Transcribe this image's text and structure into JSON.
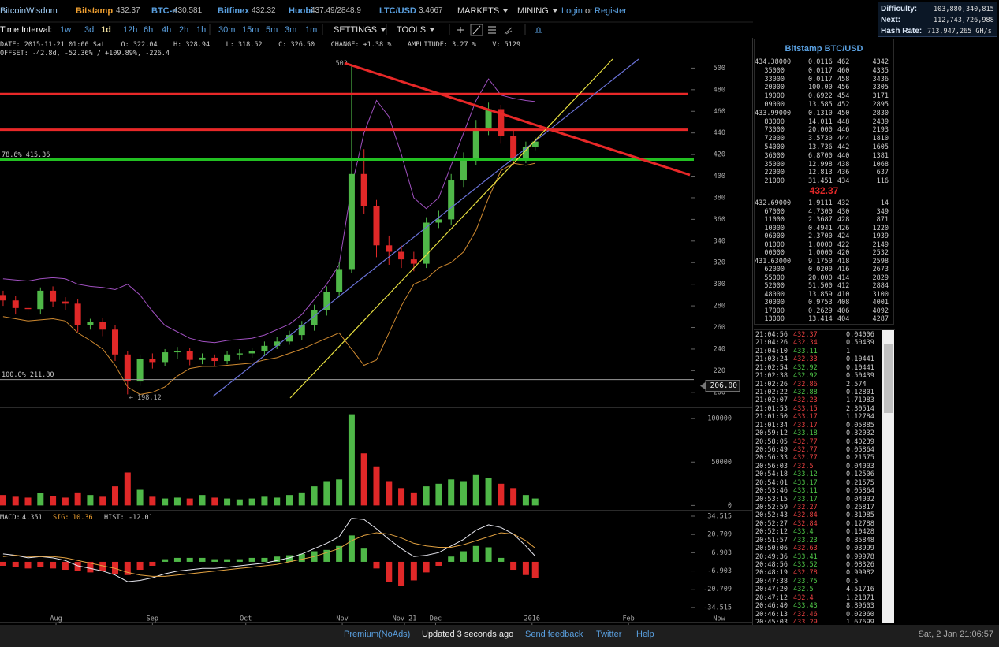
{
  "nav": {
    "brand": "BitcoinWisdom",
    "tickers": [
      {
        "name": "Bitstamp",
        "price": "432.37"
      },
      {
        "name": "BTC-e",
        "price": "430.581"
      },
      {
        "name": "Bitfinex",
        "price": "432.32"
      },
      {
        "name": "Huobi",
        "price": "437.49/2848.9"
      },
      {
        "name": "LTC/USD",
        "price": "3.4667"
      }
    ],
    "menus": [
      "MARKETS",
      "MINING"
    ],
    "login": "Login",
    "or": "or",
    "register": "Register"
  },
  "network": [
    {
      "label": "Difficulty:",
      "value": "103,880,340,815"
    },
    {
      "label": "Next:",
      "value": "112,743,726,988"
    },
    {
      "label": "Hash Rate:",
      "value": "713,947,265 GH/s"
    }
  ],
  "toolbar": {
    "label": "Time Interval:",
    "intervals": [
      "1w",
      "3d",
      "1d",
      "12h",
      "6h",
      "4h",
      "2h",
      "1h",
      "30m",
      "15m",
      "5m",
      "3m",
      "1m"
    ],
    "active": 2,
    "settings": "SETTINGS",
    "tools": "TOOLS"
  },
  "info": {
    "line1": "DATE: 2015-11-21 01:00 Sat    O: 322.04    H: 328.94    L: 318.52    C: 326.50    CHANGE: +1.38 %    AMPLITUDE: 3.27 %    V: 5129",
    "line2": "OFFSET: -42.8d, -52.36% / +109.89%, -226.4"
  },
  "price_chart": {
    "xlim": [
      "2015-07-14",
      "2016-02-22"
    ],
    "ylim": [
      186,
      528
    ],
    "yticks": [
      200,
      220,
      240,
      260,
      280,
      300,
      320,
      340,
      360,
      380,
      400,
      420,
      440,
      460,
      480,
      500
    ],
    "xticks": [
      {
        "value": "2015-08-01",
        "label": "Aug"
      },
      {
        "value": "2015-09-01",
        "label": "Sep"
      },
      {
        "value": "2015-10-01",
        "label": "Oct"
      },
      {
        "value": "2015-11-01",
        "label": "Nov"
      },
      {
        "value": "2015-11-21",
        "label": "Nov 21"
      },
      {
        "value": "2015-12-01",
        "label": "Dec"
      },
      {
        "value": "2016-01-01",
        "label": "2016"
      },
      {
        "value": "2016-02-01",
        "label": "Feb"
      }
    ],
    "now_label": "Now",
    "dates": [
      "2015-07-15",
      "2015-07-19",
      "2015-07-23",
      "2015-07-27",
      "2015-07-31",
      "2015-08-04",
      "2015-08-08",
      "2015-08-12",
      "2015-08-16",
      "2015-08-20",
      "2015-08-24",
      "2015-08-28",
      "2015-09-01",
      "2015-09-05",
      "2015-09-09",
      "2015-09-13",
      "2015-09-17",
      "2015-09-21",
      "2015-09-25",
      "2015-09-29",
      "2015-10-03",
      "2015-10-07",
      "2015-10-11",
      "2015-10-15",
      "2015-10-19",
      "2015-10-23",
      "2015-10-27",
      "2015-10-31",
      "2015-11-04",
      "2015-11-08",
      "2015-11-12",
      "2015-11-16",
      "2015-11-20",
      "2015-11-24",
      "2015-11-28",
      "2015-12-02",
      "2015-12-06",
      "2015-12-10",
      "2015-12-14",
      "2015-12-18",
      "2015-12-22",
      "2015-12-26",
      "2015-12-30",
      "2016-01-02"
    ],
    "open": [
      290,
      285,
      278,
      277,
      294,
      284,
      282,
      262,
      265,
      258,
      235,
      210,
      231,
      228,
      237,
      238,
      230,
      232,
      229,
      235,
      236,
      238,
      243,
      247,
      253,
      262,
      276,
      293,
      314,
      402,
      372,
      336,
      330,
      323,
      319,
      357,
      360,
      396,
      415,
      444,
      462,
      437,
      416,
      427
    ],
    "high": [
      294,
      289,
      282,
      297,
      298,
      288,
      286,
      268,
      269,
      262,
      238,
      235,
      236,
      240,
      242,
      241,
      236,
      235,
      238,
      240,
      241,
      247,
      251,
      257,
      266,
      281,
      298,
      320,
      502,
      425,
      378,
      345,
      336,
      330,
      362,
      368,
      402,
      422,
      452,
      468,
      466,
      442,
      432,
      436
    ],
    "low": [
      280,
      272,
      270,
      272,
      279,
      276,
      256,
      258,
      252,
      229,
      198.12,
      206,
      222,
      224,
      231,
      225,
      226,
      224,
      226,
      230,
      232,
      234,
      240,
      244,
      248,
      257,
      271,
      288,
      310,
      365,
      325,
      318,
      315,
      312,
      315,
      352,
      355,
      390,
      410,
      438,
      430,
      410,
      412,
      424
    ],
    "close": [
      285,
      278,
      277,
      294,
      284,
      282,
      262,
      265,
      258,
      235,
      210,
      231,
      228,
      237,
      238,
      230,
      232,
      229,
      235,
      236,
      238,
      243,
      247,
      253,
      262,
      276,
      293,
      314,
      402,
      372,
      336,
      330,
      323,
      319,
      357,
      360,
      396,
      415,
      444,
      462,
      437,
      416,
      427,
      432
    ],
    "bb_upper": [
      305,
      304,
      303,
      305,
      306,
      305,
      300,
      298,
      297,
      295,
      300,
      290,
      275,
      262,
      256,
      250,
      247,
      246,
      248,
      249,
      250,
      253,
      258,
      263,
      272,
      286,
      300,
      318,
      390,
      440,
      470,
      455,
      420,
      380,
      370,
      380,
      410,
      440,
      470,
      490,
      475,
      472,
      470,
      469
    ],
    "bb_lower": [
      270,
      268,
      266,
      267,
      268,
      266,
      255,
      248,
      240,
      225,
      205,
      198,
      200,
      205,
      215,
      222,
      224,
      224,
      225,
      226,
      227,
      230,
      232,
      236,
      240,
      245,
      250,
      255,
      240,
      225,
      230,
      255,
      280,
      300,
      305,
      315,
      320,
      330,
      350,
      380,
      405,
      412,
      410,
      412
    ],
    "max_label": "502",
    "min_label": "← 198.12",
    "levels": [
      {
        "value": 415.36,
        "label": "78.6% 415.36",
        "color": "#22c022"
      },
      {
        "value": 211.8,
        "label": "100.0% 211.80",
        "color": "#9a9a9a"
      }
    ],
    "red_levels": [
      {
        "value": 476,
        "color": "#e82828"
      },
      {
        "value": 443,
        "color": "#e82828"
      }
    ],
    "cursor": {
      "value": 206,
      "label": "206.00"
    }
  },
  "volume_chart": {
    "ylim": [
      -6000,
      111000
    ],
    "yticks": [
      0,
      50000,
      100000
    ],
    "values": [
      12000,
      10000,
      9000,
      14000,
      11000,
      9000,
      15000,
      12000,
      10000,
      22000,
      38000,
      18000,
      10000,
      8000,
      9000,
      8000,
      12000,
      9000,
      8000,
      7000,
      8000,
      10000,
      9000,
      12000,
      15000,
      22000,
      28000,
      30000,
      105000,
      60000,
      45000,
      28000,
      20000,
      15000,
      22000,
      25000,
      30000,
      28000,
      35000,
      32000,
      25000,
      20000,
      12000,
      8000
    ]
  },
  "macd_chart": {
    "macd_label": "MACD:",
    "macd_value": "4.351",
    "sig_label": "SIG:",
    "sig_value": "10.36",
    "hist_label": "HIST:",
    "hist_value": "-12.01",
    "ylim": [
      -45.9,
      37.5
    ],
    "yticks": [
      34.515,
      20.709,
      6.903,
      -6.903,
      -20.709,
      -34.515
    ],
    "macd": [
      6,
      5,
      3,
      4,
      3,
      1,
      -3,
      -5,
      -7,
      -10,
      -15,
      -14,
      -12,
      -9,
      -7,
      -6,
      -5,
      -5,
      -4,
      -3,
      -2,
      -1,
      1,
      3,
      6,
      10,
      14,
      19,
      33,
      32,
      25,
      17,
      10,
      4,
      5,
      7,
      12,
      17,
      24,
      28,
      26,
      21,
      12,
      4.4
    ],
    "signal": [
      4,
      5,
      4,
      4,
      4,
      3,
      1,
      -1,
      -3,
      -5,
      -8,
      -10,
      -11,
      -11,
      -10,
      -9,
      -8,
      -7,
      -6,
      -5,
      -4,
      -3,
      -2,
      0,
      2,
      4,
      7,
      10,
      16,
      20,
      22,
      21,
      18,
      14,
      12,
      11,
      11,
      13,
      16,
      19,
      22,
      21,
      16,
      10.4
    ],
    "hist": [
      -3,
      -4,
      -5,
      -4,
      -5,
      -6,
      -7,
      -8,
      -7,
      -9,
      -10,
      -6,
      -3,
      2,
      3,
      3,
      3,
      2,
      2,
      2,
      3,
      3,
      4,
      5,
      6,
      8,
      9,
      12,
      20,
      10,
      -5,
      -15,
      -18,
      -14,
      -8,
      -3,
      4,
      8,
      12,
      11,
      3,
      -6,
      -10,
      -12
    ]
  },
  "orderbook": {
    "title": "Bitstamp BTC/USD",
    "asks": [
      [
        "434.38000",
        "0.0116",
        "462",
        "4342"
      ],
      [
        "35000",
        "0.0117",
        "460",
        "4335"
      ],
      [
        "33000",
        "0.0117",
        "458",
        "3436"
      ],
      [
        "20000",
        "100.00",
        "456",
        "3305"
      ],
      [
        "19000",
        "0.6922",
        "454",
        "3171"
      ],
      [
        "09000",
        "13.585",
        "452",
        "2895"
      ],
      [
        "433.99000",
        "0.1310",
        "450",
        "2830"
      ],
      [
        "83000",
        "14.011",
        "448",
        "2439"
      ],
      [
        "73000",
        "20.000",
        "446",
        "2193"
      ],
      [
        "72000",
        "3.5730",
        "444",
        "1810"
      ],
      [
        "54000",
        "13.736",
        "442",
        "1605"
      ],
      [
        "36000",
        "6.8700",
        "440",
        "1381"
      ],
      [
        "35000",
        "12.998",
        "438",
        "1068"
      ],
      [
        "22000",
        "12.813",
        "436",
        "637"
      ],
      [
        "21000",
        "31.451",
        "434",
        "116"
      ]
    ],
    "last": "432.37",
    "bids": [
      [
        "432.69000",
        "1.9111",
        "432",
        "14"
      ],
      [
        "67000",
        "4.7300",
        "430",
        "349"
      ],
      [
        "11000",
        "2.3687",
        "428",
        "871"
      ],
      [
        "10000",
        "0.4941",
        "426",
        "1220"
      ],
      [
        "06000",
        "2.3700",
        "424",
        "1939"
      ],
      [
        "01000",
        "1.0000",
        "422",
        "2149"
      ],
      [
        "00000",
        "1.0000",
        "420",
        "2532"
      ],
      [
        "431.63000",
        "9.1750",
        "418",
        "2598"
      ],
      [
        "62000",
        "0.0200",
        "416",
        "2673"
      ],
      [
        "55000",
        "20.000",
        "414",
        "2829"
      ],
      [
        "52000",
        "51.500",
        "412",
        "2884"
      ],
      [
        "48000",
        "13.859",
        "410",
        "3100"
      ],
      [
        "30000",
        "0.9753",
        "408",
        "4001"
      ],
      [
        "17000",
        "0.2629",
        "406",
        "4092"
      ],
      [
        "13000",
        "13.414",
        "404",
        "4287"
      ]
    ]
  },
  "trades": [
    {
      "time": "21:04:56",
      "price": "432.37",
      "amount": "0.04006",
      "side": "sell"
    },
    {
      "time": "21:04:26",
      "price": "432.34",
      "amount": "0.50439",
      "side": "sell"
    },
    {
      "time": "21:04:10",
      "price": "433.11",
      "amount": "1",
      "side": "buy"
    },
    {
      "time": "21:03:24",
      "price": "432.33",
      "amount": "0.10441",
      "side": "sell"
    },
    {
      "time": "21:02:54",
      "price": "432.92",
      "amount": "0.10441",
      "side": "buy"
    },
    {
      "time": "21:02:38",
      "price": "432.92",
      "amount": "0.50439",
      "side": "buy"
    },
    {
      "time": "21:02:26",
      "price": "432.86",
      "amount": "2.574",
      "side": "sell"
    },
    {
      "time": "21:02:22",
      "price": "432.88",
      "amount": "0.12801",
      "side": "buy"
    },
    {
      "time": "21:02:07",
      "price": "432.23",
      "amount": "1.71983",
      "side": "sell"
    },
    {
      "time": "21:01:53",
      "price": "433.15",
      "amount": "2.30514",
      "side": "sell"
    },
    {
      "time": "21:01:50",
      "price": "433.17",
      "amount": "1.12784",
      "side": "sell"
    },
    {
      "time": "21:01:34",
      "price": "433.17",
      "amount": "0.05885",
      "side": "sell"
    },
    {
      "time": "20:59:12",
      "price": "433.18",
      "amount": "0.32032",
      "side": "buy"
    },
    {
      "time": "20:58:05",
      "price": "432.77",
      "amount": "0.40239",
      "side": "sell"
    },
    {
      "time": "20:56:49",
      "price": "432.77",
      "amount": "0.05864",
      "side": "sell"
    },
    {
      "time": "20:56:33",
      "price": "432.77",
      "amount": "0.21575",
      "side": "sell"
    },
    {
      "time": "20:56:03",
      "price": "432.5",
      "amount": "0.04003",
      "side": "sell"
    },
    {
      "time": "20:54:18",
      "price": "433.12",
      "amount": "0.12506",
      "side": "buy"
    },
    {
      "time": "20:54:01",
      "price": "433.17",
      "amount": "0.21575",
      "side": "buy"
    },
    {
      "time": "20:53:46",
      "price": "433.11",
      "amount": "0.05864",
      "side": "buy"
    },
    {
      "time": "20:53:15",
      "price": "433.17",
      "amount": "0.04002",
      "side": "buy"
    },
    {
      "time": "20:52:59",
      "price": "432.27",
      "amount": "0.26817",
      "side": "sell"
    },
    {
      "time": "20:52:43",
      "price": "432.84",
      "amount": "0.31985",
      "side": "sell"
    },
    {
      "time": "20:52:27",
      "price": "432.84",
      "amount": "0.12788",
      "side": "sell"
    },
    {
      "time": "20:52:12",
      "price": "433.4",
      "amount": "0.10428",
      "side": "buy"
    },
    {
      "time": "20:51:57",
      "price": "433.23",
      "amount": "0.85848",
      "side": "buy"
    },
    {
      "time": "20:50:06",
      "price": "432.63",
      "amount": "0.03999",
      "side": "sell"
    },
    {
      "time": "20:49:36",
      "price": "433.41",
      "amount": "0.99978",
      "side": "buy"
    },
    {
      "time": "20:48:56",
      "price": "433.52",
      "amount": "0.08326",
      "side": "buy"
    },
    {
      "time": "20:48:19",
      "price": "432.78",
      "amount": "0.99982",
      "side": "sell"
    },
    {
      "time": "20:47:38",
      "price": "433.75",
      "amount": "0.5",
      "side": "buy"
    },
    {
      "time": "20:47:20",
      "price": "432.5",
      "amount": "4.51716",
      "side": "buy"
    },
    {
      "time": "20:47:12",
      "price": "432.4",
      "amount": "1.21871",
      "side": "sell"
    },
    {
      "time": "20:46:40",
      "price": "433.43",
      "amount": "8.89603",
      "side": "buy"
    },
    {
      "time": "20:46:13",
      "price": "432.46",
      "amount": "0.02060",
      "side": "sell"
    },
    {
      "time": "20:45:03",
      "price": "433.29",
      "amount": "1.67699",
      "side": "sell"
    }
  ],
  "footer": {
    "premium": "Premium(NoAds)",
    "updated": "Updated 3 seconds ago",
    "feedback": "Send feedback",
    "twitter": "Twitter",
    "help": "Help",
    "clock": "Sat, 2 Jan 21:06:57"
  }
}
